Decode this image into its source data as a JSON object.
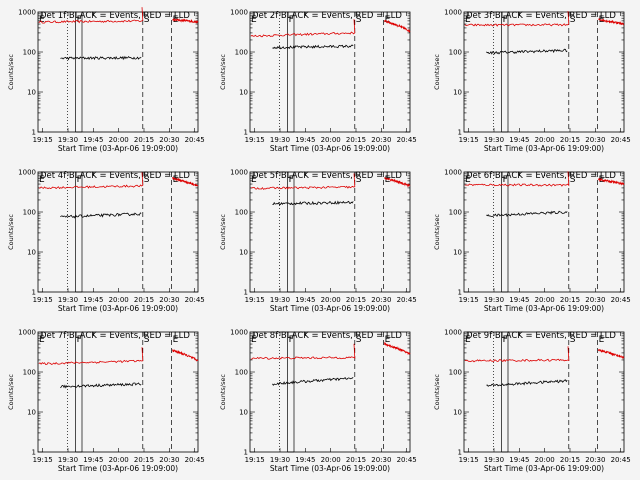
{
  "chart_data": {
    "type": "line",
    "y_scale": "log",
    "ylim": [
      1,
      1000
    ],
    "y_ticks": [
      {
        "value": 1,
        "label": "1"
      },
      {
        "value": 10,
        "label": "10"
      },
      {
        "value": 100,
        "label": "100"
      },
      {
        "value": 1000,
        "label": "1000"
      }
    ],
    "x_ticks": [
      "19:15",
      "19:30",
      "19:45",
      "20:00",
      "20:15",
      "20:30",
      "20:45"
    ],
    "xlabel": "Start Time (03-Apr-06 19:09:00)",
    "ylabel": "Counts/sec",
    "series_colors": {
      "events": "#000000",
      "lld": "#dd0000"
    },
    "panels": [
      {
        "title": "Det 1f BLACK = Events, RED = LLD",
        "lld": {
          "start": 560,
          "end": 600,
          "after": [
            650,
            560
          ]
        },
        "events": {
          "start": 70,
          "end": 72
        }
      },
      {
        "title": "Det 2f BLACK = Events, RED = LLD",
        "lld": {
          "start": 250,
          "end": 300,
          "after": [
            600,
            330
          ]
        },
        "events": {
          "start": 130,
          "end": 140
        }
      },
      {
        "title": "Det 3f BLACK = Events, RED = LLD",
        "lld": {
          "start": 470,
          "end": 480,
          "after": [
            650,
            500
          ]
        },
        "events": {
          "start": 95,
          "end": 110
        }
      },
      {
        "title": "Det 4f BLACK = Events, RED = LLD",
        "lld": {
          "start": 400,
          "end": 450,
          "after": [
            700,
            450
          ]
        },
        "events": {
          "start": 75,
          "end": 90
        }
      },
      {
        "title": "Det 5f BLACK = Events, RED = LLD",
        "lld": {
          "start": 390,
          "end": 420,
          "after": [
            700,
            450
          ]
        },
        "events": {
          "start": 160,
          "end": 175
        }
      },
      {
        "title": "Det 6f BLACK = Events, RED = LLD",
        "lld": {
          "start": 480,
          "end": 470,
          "after": [
            650,
            500
          ]
        },
        "events": {
          "start": 80,
          "end": 100
        }
      },
      {
        "title": "Det 7f BLACK = Events, RED = LLD",
        "lld": {
          "start": 160,
          "end": 190,
          "after": [
            350,
            190
          ]
        },
        "events": {
          "start": 43,
          "end": 50
        }
      },
      {
        "title": "Det 8f BLACK = Events, RED = LLD",
        "lld": {
          "start": 220,
          "end": 230,
          "after": [
            500,
            280
          ]
        },
        "events": {
          "start": 50,
          "end": 70
        }
      },
      {
        "title": "Det 9f BLACK = Events, RED = LLD",
        "lld": {
          "start": 190,
          "end": 200,
          "after": [
            350,
            230
          ]
        },
        "events": {
          "start": 45,
          "end": 60
        }
      }
    ],
    "event_markers": [
      "E",
      "F",
      "S",
      "E"
    ]
  }
}
